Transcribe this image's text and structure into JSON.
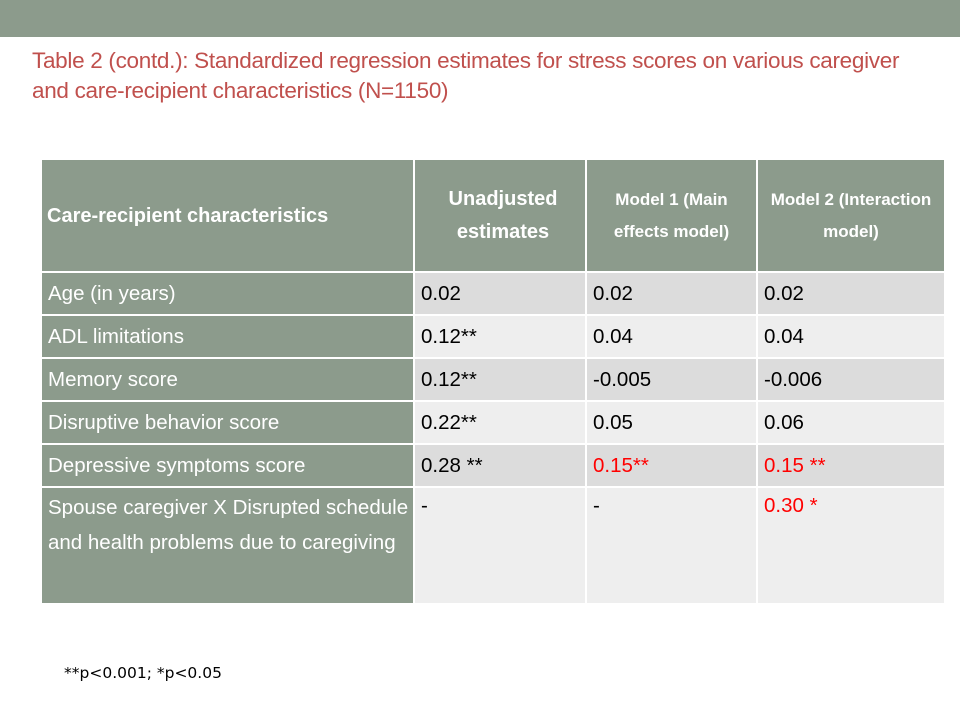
{
  "slide": {
    "title": "Table 2 (contd.): Standardized regression estimates for stress scores on various caregiver and care-recipient characteristics (N=1150)",
    "footnote": "**p<0.001; *p<0.05"
  },
  "table": {
    "headers": [
      "Care-recipient characteristics",
      "Unadjusted estimates",
      "Model 1 (Main effects model)",
      "Model 2 (Interaction model)"
    ],
    "rows": [
      {
        "label": "Age (in years)",
        "unadjusted": "0.02",
        "model1": "0.02",
        "model2": "0.02"
      },
      {
        "label": "ADL limitations",
        "unadjusted": "0.12**",
        "model1": "0.04",
        "model2": "0.04"
      },
      {
        "label": "Memory score",
        "unadjusted": "0.12**",
        "model1": "-0.005",
        "model2": "-0.006"
      },
      {
        "label": "Disruptive behavior score",
        "unadjusted": "0.22**",
        "model1": "0.05",
        "model2": "0.06"
      },
      {
        "label": "Depressive symptoms score",
        "unadjusted": "0.28 **",
        "model1": "0.15**",
        "model2": "0.15 **"
      },
      {
        "label": "Spouse caregiver X Disrupted schedule and health problems due to caregiving",
        "unadjusted": "-",
        "model1": "-",
        "model2": "0.30 *"
      }
    ]
  },
  "colors": {
    "header_bg": "#8c9b8c",
    "title": "#c0504d",
    "significant": "#ff0000",
    "row_odd": "#dcdcdc",
    "row_even": "#eeeeee"
  }
}
